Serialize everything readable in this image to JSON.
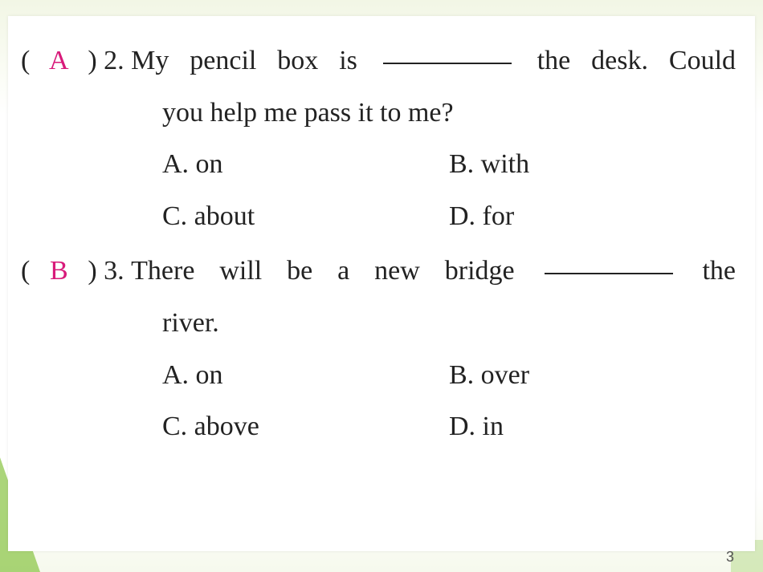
{
  "page": {
    "number": "3",
    "background_top": "#f2f6e5",
    "accent_color": "#d81a7a",
    "text_color": "#222222"
  },
  "questions": [
    {
      "answer": "A",
      "number": "2.",
      "stem_line1_before": "My  pencil  box  is ",
      "stem_line1_after": " the  desk. Could",
      "stem_line2": "you help me pass it to me?",
      "options": {
        "A": "A. on",
        "B": "B. with",
        "C": "C. about",
        "D": "D. for"
      }
    },
    {
      "answer": "B",
      "number": "3.",
      "stem_line1_before": "There  will  be  a  new  bridge ",
      "stem_line1_after": " the",
      "stem_line2": "river.",
      "options": {
        "A": "A. on",
        "B": "B. over",
        "C": "C. above",
        "D": "D. in"
      }
    }
  ]
}
